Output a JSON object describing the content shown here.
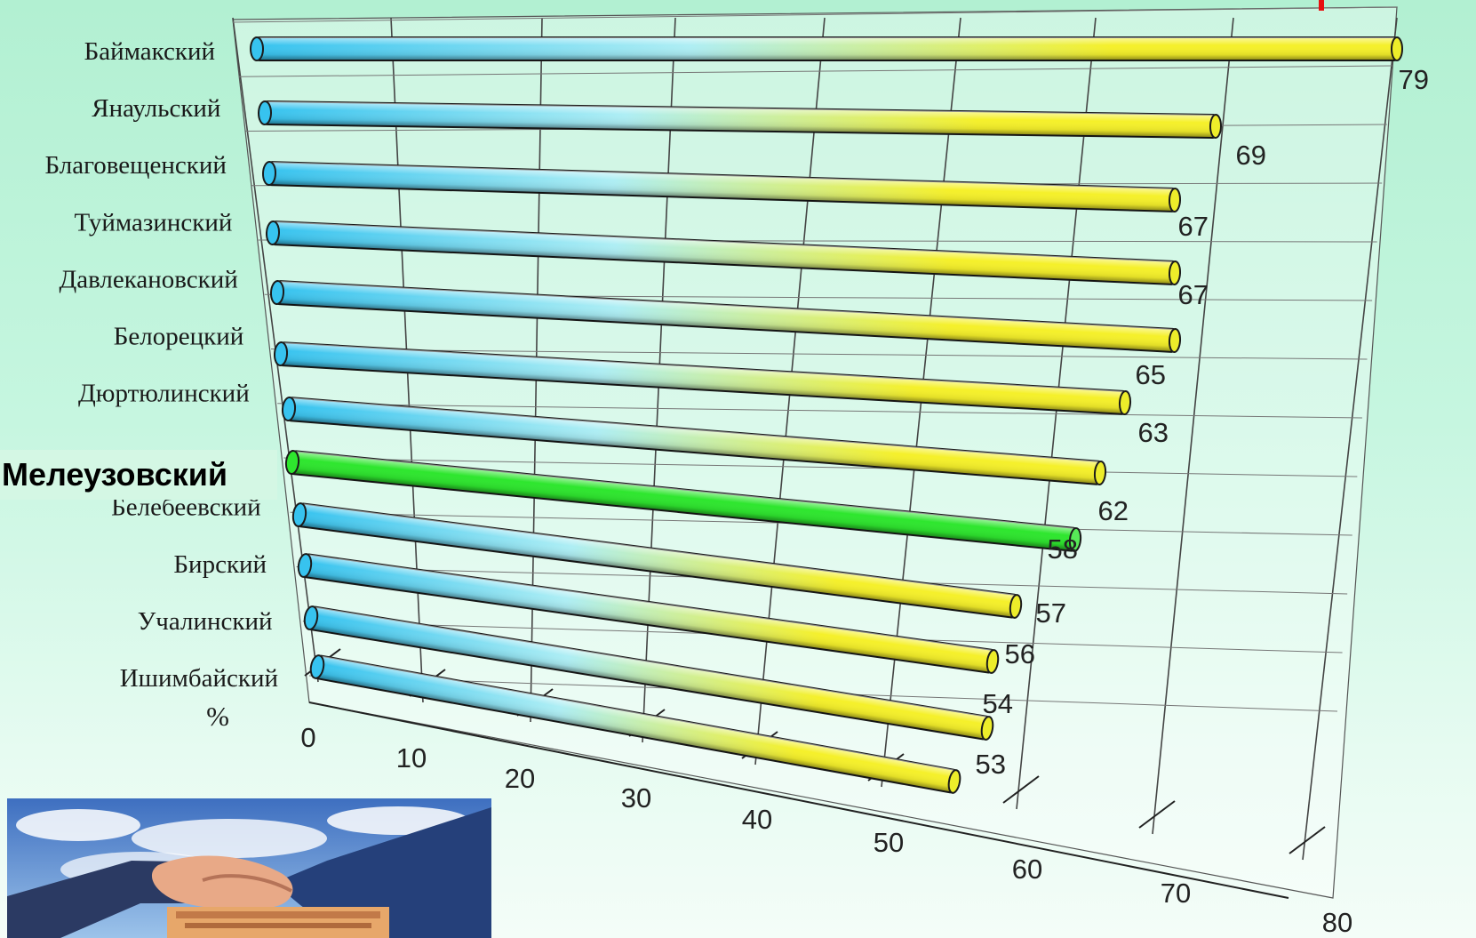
{
  "colors": {
    "bar_start": "#37c3ef",
    "bar_mid": "#aeeef4",
    "bar_end": "#f5f02a",
    "highlight_bar": "#2ee62e",
    "accent_mark": "#e81010"
  },
  "highlight_label": "Мелеузовский",
  "photo": {
    "icon": "handshake-photo-icon"
  },
  "chart_data": {
    "type": "bar",
    "orientation": "horizontal",
    "style": "3d-cylinder",
    "categories": [
      "Баймакский",
      "Янаульский",
      "Благовещенский",
      "Туймазинский",
      "Давлекановский",
      "Белорецкий",
      "Дюртюлинский",
      "Мелеузовский",
      "Белебеевский",
      "Бирский",
      "Учалинский",
      "Ишимбайский"
    ],
    "values": [
      79,
      69,
      67,
      67,
      65,
      63,
      62,
      58,
      57,
      56,
      54,
      53
    ],
    "value_labels": [
      "79",
      "69",
      "67",
      "67",
      "65",
      "63",
      "62",
      "58",
      "57",
      "56",
      "54",
      "53"
    ],
    "highlighted_category": "Мелеузовский",
    "xlim": [
      0,
      80
    ],
    "xticks": [
      0,
      10,
      20,
      30,
      40,
      50,
      60,
      70,
      80
    ],
    "xlabel": "%",
    "grid": true,
    "legend": "none"
  }
}
